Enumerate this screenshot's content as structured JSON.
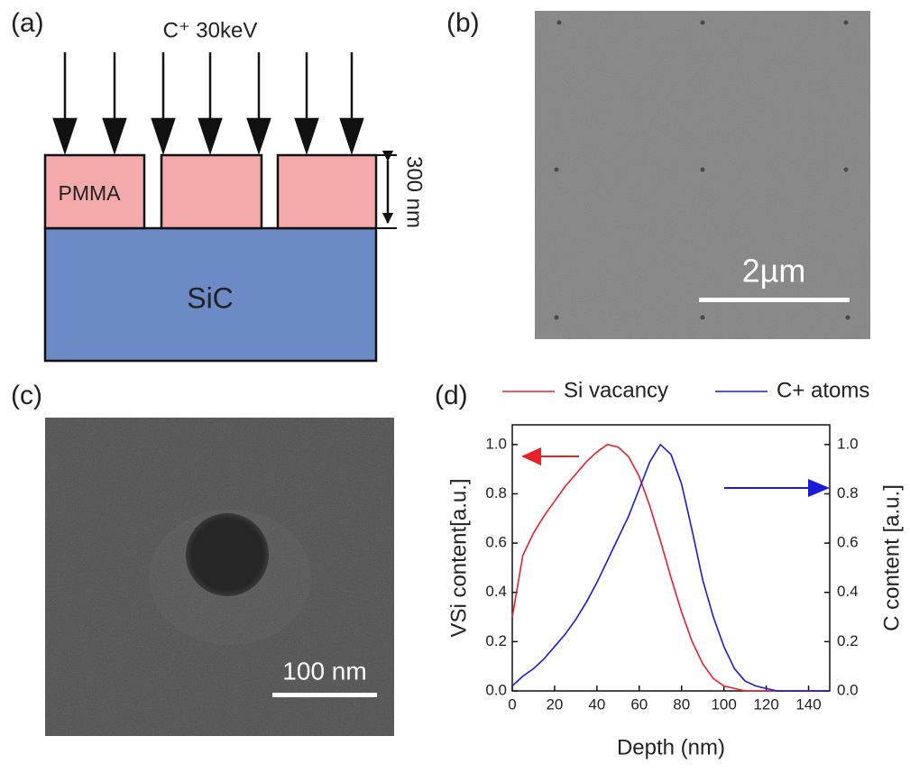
{
  "panels": {
    "a": "(a)",
    "b": "(b)",
    "c": "(c)",
    "d": "(d)"
  },
  "diagram": {
    "beam": "C⁺ 30keV",
    "resist": "PMMA",
    "substrate": "SiC",
    "thickness": "300 nm"
  },
  "images": {
    "b_scale": "2µm",
    "c_scale": "100 nm"
  },
  "chart_data": {
    "type": "line",
    "x_label": "Depth (nm)",
    "y_label": "VSi content[a.u.]",
    "y2_label": "C content [a.u.]",
    "x": [
      0,
      5,
      10,
      15,
      20,
      25,
      30,
      35,
      40,
      45,
      50,
      55,
      60,
      65,
      70,
      75,
      80,
      85,
      90,
      95,
      100,
      105,
      110,
      115,
      120,
      125,
      130,
      135,
      140,
      145,
      150
    ],
    "series": [
      {
        "name": "Si vacancy",
        "color": "#e8202a",
        "values": [
          0.3,
          0.55,
          0.64,
          0.71,
          0.77,
          0.83,
          0.88,
          0.93,
          0.97,
          1.0,
          0.99,
          0.95,
          0.87,
          0.75,
          0.61,
          0.46,
          0.32,
          0.2,
          0.11,
          0.05,
          0.02,
          0.01,
          0,
          0,
          0,
          0,
          0,
          0,
          0,
          0,
          0
        ]
      },
      {
        "name": "C+ atoms",
        "color": "#1a1adb",
        "axis": "y2",
        "values": [
          0.02,
          0.06,
          0.09,
          0.13,
          0.18,
          0.23,
          0.29,
          0.36,
          0.44,
          0.53,
          0.62,
          0.71,
          0.82,
          0.93,
          1.0,
          0.96,
          0.84,
          0.65,
          0.45,
          0.3,
          0.18,
          0.09,
          0.04,
          0.02,
          0.01,
          0,
          0,
          0,
          0,
          0,
          0
        ]
      }
    ],
    "xlim": [
      0,
      150
    ],
    "xticks": [
      0,
      20,
      40,
      60,
      80,
      100,
      120,
      140
    ],
    "ylim": [
      0,
      1.08
    ],
    "yticks": [
      {
        "value": 0,
        "label": "0.0"
      },
      {
        "value": 0.2,
        "label": "0.2"
      },
      {
        "value": 0.4,
        "label": "0.4"
      },
      {
        "value": 0.6,
        "label": "0.6"
      },
      {
        "value": 0.8,
        "label": "0.8"
      },
      {
        "value": 1,
        "label": "1.0"
      }
    ],
    "y2lim": [
      0,
      1.08
    ],
    "y2ticks": [
      {
        "value": 0,
        "label": "0.0"
      },
      {
        "value": 0.2,
        "label": "0.2"
      },
      {
        "value": 0.4,
        "label": "0.4"
      },
      {
        "value": 0.6,
        "label": "0.6"
      },
      {
        "value": 0.8,
        "label": "0.8"
      },
      {
        "value": 1,
        "label": "1.0"
      }
    ]
  }
}
